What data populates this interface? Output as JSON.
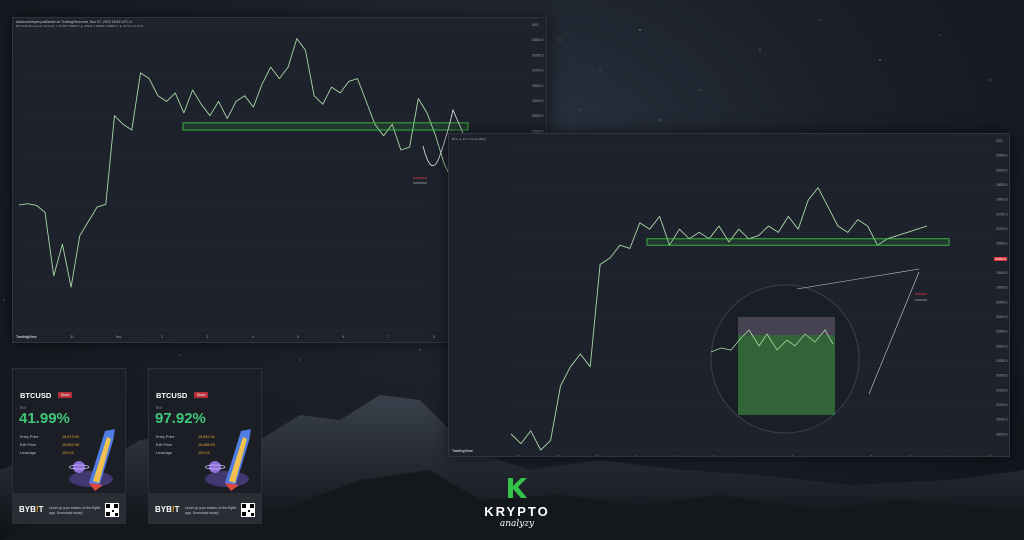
{
  "colors": {
    "bull": "#26a69a",
    "price_line": "#a8d8a5",
    "zone": "#3fd23f",
    "bear": "#e0373f",
    "accent_green": "#3fc77a",
    "bybit_orange": "#f7a600"
  },
  "chart_left": {
    "header": "Ambrozekfryan published on TradingView.com, Nov 07, 2022 15:52 UTC-4",
    "symbol_line": "BTCUSD Perpetual Contract, 1, BYBIT  20856.5 ▲ 20901.0 20856.0 20880.0 ▲ 23.50 (+0.11%)",
    "price_axis": [
      "USD",
      "20850.0",
      "20750.0",
      "20700.0",
      "20650.0",
      "20600.0",
      "20550.0",
      "20500.0",
      "20450.0",
      "20400.0",
      "20350.0",
      "20300.0",
      "20250.0",
      "20200.0",
      "20150.0",
      "20100.0",
      "20050.0",
      "20000.0",
      "19950.0",
      "19900.0"
    ],
    "price_tag": "20857.0",
    "time_axis": [
      "30",
      "31",
      "Nov",
      "2",
      "3",
      "4",
      "5",
      "6",
      "7",
      "8",
      "9",
      "12:00"
    ],
    "footer": "TradingView",
    "icon": "tradingview-icon",
    "chart_data": {
      "type": "line",
      "title": "",
      "xlabel": "",
      "ylabel": "USD",
      "grid": true,
      "x": [
        0,
        5,
        10,
        20,
        30,
        40,
        50,
        60,
        70,
        80,
        90,
        100,
        110,
        120,
        130,
        140,
        150,
        160,
        170,
        180,
        190,
        200,
        210,
        220,
        230,
        240,
        250,
        260,
        270,
        280,
        290,
        300,
        310,
        320,
        330,
        340,
        350,
        360,
        370,
        380,
        390,
        400,
        410,
        420,
        430,
        440,
        450,
        460,
        470,
        480,
        490
      ],
      "values": [
        20338,
        20342,
        20336,
        20312,
        20090,
        20200,
        20050,
        20230,
        20280,
        20330,
        20340,
        20650,
        20620,
        20600,
        20800,
        20780,
        20720,
        20700,
        20730,
        20660,
        20740,
        20690,
        20650,
        20700,
        20640,
        20700,
        20720,
        20680,
        20760,
        20820,
        20780,
        20820,
        20920,
        20880,
        20720,
        20690,
        20750,
        20730,
        20770,
        20780,
        20700,
        20620,
        20580,
        20620,
        20530,
        20540,
        20710,
        20660,
        20580,
        20480,
        20420
      ],
      "zone": [
        20625,
        20600
      ],
      "ylim": [
        19900,
        20950
      ]
    }
  },
  "chart_right": {
    "symbol_line": "BTC ▲ 24 1.14 (+0.38%)",
    "price_axis": [
      "USD",
      "20950.0",
      "20900.0",
      "20850.0",
      "20800.0",
      "20750.0",
      "20700.0",
      "20650.0",
      "20600.0",
      "20550.0",
      "20500.0",
      "20450.0",
      "20400.0",
      "20350.0",
      "20300.0",
      "20250.0",
      "20200.0",
      "20150.0",
      "20100.0",
      "20050.0",
      "20000.0"
    ],
    "price_tag": "20880.0",
    "time_axis": [
      "27",
      "28",
      "29",
      "Nov",
      "2",
      "3",
      "4",
      "5",
      "6",
      "7",
      "8",
      "9",
      "10"
    ],
    "footer": "TradingView",
    "icon": "tradingview-icon",
    "chart_data": {
      "type": "line",
      "title": "",
      "xlabel": "",
      "ylabel": "USD",
      "grid": true,
      "values": [
        20050,
        20020,
        20060,
        20000,
        20030,
        20200,
        20260,
        20300,
        20260,
        20580,
        20600,
        20640,
        20630,
        20710,
        20690,
        20730,
        20640,
        20690,
        20660,
        20680,
        20660,
        20700,
        20650,
        20690,
        20660,
        20670,
        20700,
        20680,
        20730,
        20690,
        20780,
        20820,
        20760,
        20700,
        20680,
        20720,
        20700,
        20640,
        20660,
        20670,
        20680,
        20690,
        20700
      ],
      "zone": [
        20660,
        20640
      ],
      "ylim": [
        20000,
        20950
      ]
    }
  },
  "cards": [
    {
      "pair": "BTCUSD",
      "badge": "Short",
      "roi_label": "ROI",
      "roi": "41.99%",
      "rows": [
        {
          "k": "Entry Price",
          "v": "16,873.99"
        },
        {
          "k": "Exit Price",
          "v": "16,802.08"
        },
        {
          "k": "Leverage",
          "v": "100.0X"
        }
      ],
      "logo": "BYB!T",
      "message": "Level up your trades on the Bybit app. Download today!",
      "icon": "rocket-illustration"
    },
    {
      "pair": "BTCUSD",
      "badge": "Short",
      "roi_label": "ROI",
      "roi": "97.92%",
      "rows": [
        {
          "k": "Entry Price",
          "v": "16,849.31"
        },
        {
          "k": "Exit Price",
          "v": "16,688.53"
        },
        {
          "k": "Leverage",
          "v": "100.0X"
        }
      ],
      "logo": "BYB!T",
      "message": "Level up your trades on the Bybit app. Download today!",
      "icon": "rocket-illustration"
    }
  ],
  "brand": {
    "letter": "K",
    "name": "KRYPTO",
    "sub": "analyzy",
    "icon": "krypto-logo-icon"
  }
}
